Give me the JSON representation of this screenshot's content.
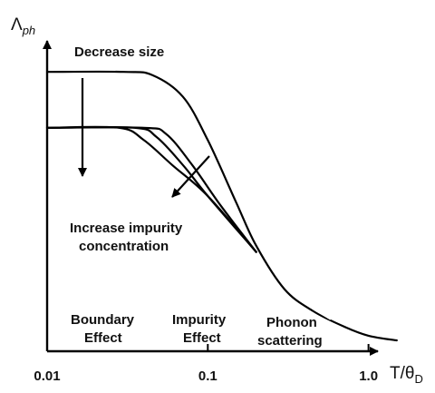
{
  "chart_data": {
    "type": "line",
    "x_scale": "log",
    "xlim": [
      0.01,
      2.0
    ],
    "x_ticks": [
      "0.01",
      "0.1",
      "1.0"
    ],
    "x_label": {
      "main": "T/θ",
      "sub": "D"
    },
    "y_label": {
      "main": "Λ",
      "sub": "ph"
    },
    "series": [
      {
        "x": [
          0.01,
          0.03,
          0.045,
          0.07,
          0.1,
          0.15,
          0.2,
          0.3,
          0.45,
          0.7,
          1.0,
          1.5
        ],
        "y": [
          0.9,
          0.9,
          0.89,
          0.82,
          0.68,
          0.48,
          0.34,
          0.2,
          0.13,
          0.08,
          0.05,
          0.035
        ]
      },
      {
        "x": [
          0.01,
          0.04,
          0.055,
          0.08,
          0.12,
          0.2
        ],
        "y": [
          0.72,
          0.72,
          0.7,
          0.6,
          0.47,
          0.32
        ]
      },
      {
        "x": [
          0.01,
          0.035,
          0.048,
          0.07,
          0.1,
          0.2
        ],
        "y": [
          0.72,
          0.72,
          0.69,
          0.6,
          0.5,
          0.32
        ]
      },
      {
        "x": [
          0.01,
          0.028,
          0.04,
          0.06,
          0.1,
          0.2
        ],
        "y": [
          0.72,
          0.72,
          0.68,
          0.6,
          0.5,
          0.32
        ]
      }
    ],
    "annotations": {
      "decrease_size": "Decrease size",
      "increase_impurity_1": "Increase impurity",
      "increase_impurity_2": "concentration",
      "boundary_1": "Boundary",
      "boundary_2": "Effect",
      "impurity_1": "Impurity",
      "impurity_2": "Effect",
      "phonon_1": "Phonon",
      "phonon_2": "scattering"
    }
  }
}
